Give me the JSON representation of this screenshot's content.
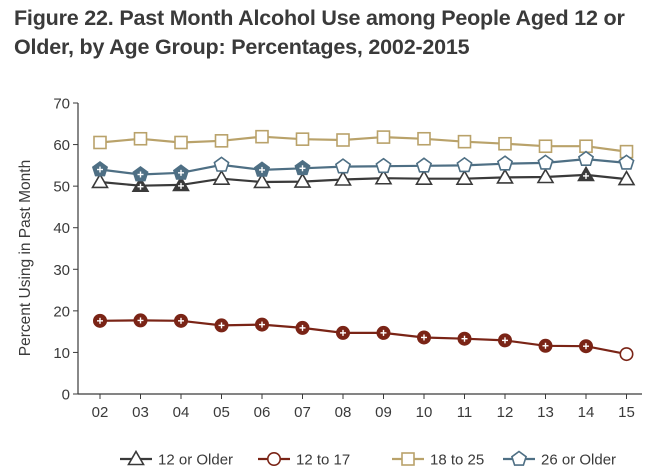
{
  "chart_data": {
    "type": "line",
    "title": "Figure 22. Past Month Alcohol Use among People Aged 12 or Older, by Age Group: Percentages, 2002-2015",
    "xlabel": "",
    "ylabel": "Percent Using in Past Month",
    "ylim": [
      0,
      70
    ],
    "yticks": [
      "0",
      "10",
      "20",
      "30",
      "40",
      "50",
      "60",
      "70"
    ],
    "categories": [
      "02",
      "03",
      "04",
      "05",
      "06",
      "07",
      "08",
      "09",
      "10",
      "11",
      "12",
      "13",
      "14",
      "15"
    ],
    "grid": false,
    "legend_position": "bottom",
    "series": [
      {
        "name": "12 or Older",
        "color": "#3a3a3a",
        "marker": "triangle",
        "values": [
          51.0,
          50.1,
          50.3,
          51.8,
          51.0,
          51.1,
          51.6,
          51.9,
          51.8,
          51.8,
          52.1,
          52.2,
          52.7,
          51.7
        ],
        "significant": [
          false,
          true,
          true,
          false,
          false,
          false,
          false,
          false,
          false,
          false,
          false,
          false,
          true,
          false
        ]
      },
      {
        "name": "12 to 17",
        "color": "#7a2416",
        "marker": "circle",
        "values": [
          17.6,
          17.7,
          17.6,
          16.5,
          16.7,
          15.9,
          14.7,
          14.7,
          13.6,
          13.3,
          12.9,
          11.6,
          11.5,
          9.6
        ],
        "significant": [
          true,
          true,
          true,
          true,
          true,
          true,
          true,
          true,
          true,
          true,
          true,
          true,
          true,
          false
        ]
      },
      {
        "name": "18 to 25",
        "color": "#b9a26a",
        "marker": "square",
        "values": [
          60.5,
          61.4,
          60.5,
          60.9,
          61.9,
          61.3,
          61.1,
          61.8,
          61.4,
          60.7,
          60.2,
          59.6,
          59.6,
          58.3
        ],
        "significant": [
          false,
          false,
          false,
          false,
          false,
          false,
          false,
          false,
          false,
          false,
          false,
          false,
          false,
          false
        ]
      },
      {
        "name": "26 or Older",
        "color": "#4e6f84",
        "marker": "pentagon",
        "values": [
          54.0,
          52.8,
          53.2,
          55.1,
          53.9,
          54.3,
          54.7,
          54.8,
          54.9,
          55.0,
          55.4,
          55.6,
          56.5,
          55.6
        ],
        "significant": [
          true,
          true,
          true,
          false,
          true,
          true,
          false,
          false,
          false,
          false,
          false,
          false,
          false,
          false
        ]
      }
    ]
  }
}
